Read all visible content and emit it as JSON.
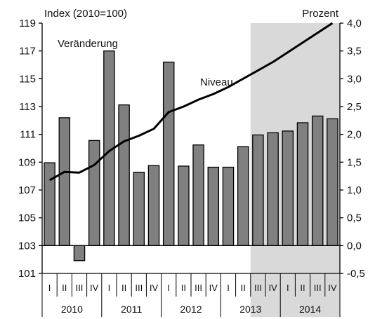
{
  "chart_data": {
    "type": "bar",
    "left_axis": {
      "title": "Index (2010=100)",
      "ylim": [
        101,
        119
      ],
      "ticks": [
        101,
        103,
        105,
        107,
        109,
        111,
        113,
        115,
        117,
        119
      ],
      "tick_labels": [
        "101",
        "103",
        "105",
        "107",
        "109",
        "111",
        "113",
        "115",
        "117",
        "119"
      ]
    },
    "right_axis": {
      "title": "Prozent",
      "ylim": [
        -0.5,
        4.0
      ],
      "ticks": [
        -0.5,
        0.0,
        0.5,
        1.0,
        1.5,
        2.0,
        2.5,
        3.0,
        3.5,
        4.0
      ],
      "tick_labels": [
        "-0,5",
        "0,0",
        "0,5",
        "1,0",
        "1,5",
        "2,0",
        "2,5",
        "3,0",
        "3,5",
        "4,0"
      ]
    },
    "categories": [
      "I",
      "II",
      "III",
      "IV",
      "I",
      "II",
      "III",
      "IV",
      "I",
      "II",
      "III",
      "IV",
      "I",
      "II",
      "III",
      "IV",
      "I",
      "II",
      "III",
      "IV"
    ],
    "years": [
      "2010",
      "2011",
      "2012",
      "2013",
      "2014"
    ],
    "forecast_shading_from_index": 14,
    "series": [
      {
        "name": "Veränderung",
        "type": "bar",
        "axis": "right",
        "color": "#808080",
        "values": [
          1.49,
          2.3,
          -0.27,
          1.89,
          3.5,
          2.53,
          1.32,
          1.44,
          3.3,
          1.43,
          1.81,
          1.41,
          1.41,
          1.78,
          1.99,
          2.03,
          2.06,
          2.21,
          2.33,
          2.28
        ]
      },
      {
        "name": "Niveau",
        "type": "line",
        "axis": "left",
        "color": "#000000",
        "values": [
          107.7,
          108.3,
          108.25,
          108.8,
          109.8,
          110.5,
          110.9,
          111.4,
          112.6,
          113.0,
          113.5,
          113.9,
          114.4,
          115.0,
          115.6,
          116.2,
          116.9,
          117.6,
          118.3,
          119.0
        ]
      }
    ],
    "annotations": [
      "Veränderung",
      "Niveau"
    ],
    "grid": false
  }
}
